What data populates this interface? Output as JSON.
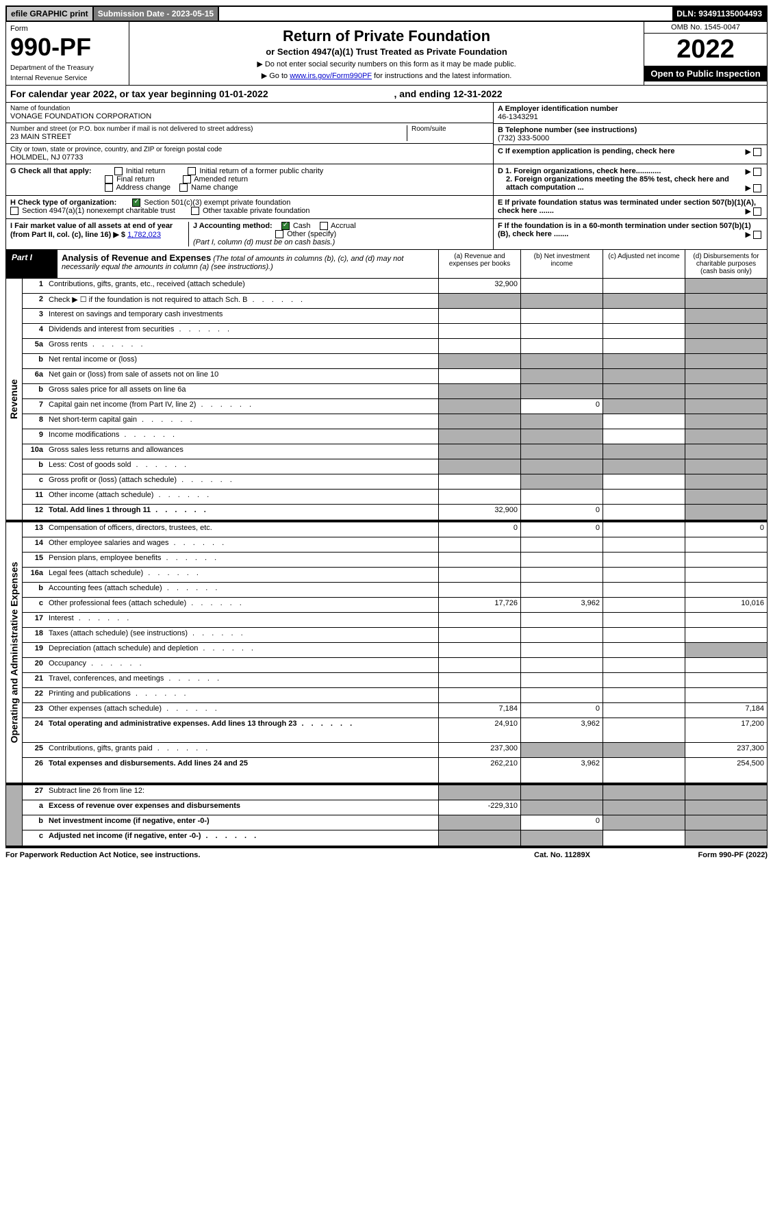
{
  "top": {
    "efile": "efile GRAPHIC print",
    "subdate_label": "Submission Date - 2023-05-15",
    "dln": "DLN: 93491135004493"
  },
  "header": {
    "form_label": "Form",
    "form_number": "990-PF",
    "dept1": "Department of the Treasury",
    "dept2": "Internal Revenue Service",
    "title": "Return of Private Foundation",
    "subtitle": "or Section 4947(a)(1) Trust Treated as Private Foundation",
    "instr1": "▶ Do not enter social security numbers on this form as it may be made public.",
    "instr2_pre": "▶ Go to ",
    "instr2_link": "www.irs.gov/Form990PF",
    "instr2_post": " for instructions and the latest information.",
    "omb": "OMB No. 1545-0047",
    "year": "2022",
    "open": "Open to Public Inspection"
  },
  "calendar": {
    "text_pre": "For calendar year 2022, or tax year beginning 01-01-2022",
    "text_post": ", and ending 12-31-2022"
  },
  "id": {
    "name_label": "Name of foundation",
    "name": "VONAGE FOUNDATION CORPORATION",
    "addr_label": "Number and street (or P.O. box number if mail is not delivered to street address)",
    "addr": "23 MAIN STREET",
    "room_label": "Room/suite",
    "city_label": "City or town, state or province, country, and ZIP or foreign postal code",
    "city": "HOLMDEL, NJ  07733",
    "ein_label": "A Employer identification number",
    "ein": "46-1343291",
    "phone_label": "B Telephone number (see instructions)",
    "phone": "(732) 333-5000",
    "c_label": "C If exemption application is pending, check here"
  },
  "checks": {
    "g_label": "G Check all that apply:",
    "g1": "Initial return",
    "g2": "Final return",
    "g3": "Address change",
    "g4": "Initial return of a former public charity",
    "g5": "Amended return",
    "g6": "Name change",
    "h_label": "H Check type of organization:",
    "h1": "Section 501(c)(3) exempt private foundation",
    "h2": "Section 4947(a)(1) nonexempt charitable trust",
    "h3": "Other taxable private foundation",
    "i_label": "I Fair market value of all assets at end of year (from Part II, col. (c), line 16) ▶ $",
    "i_value": "1,782,023",
    "j_label": "J Accounting method:",
    "j1": "Cash",
    "j2": "Accrual",
    "j3": "Other (specify)",
    "j_note": "(Part I, column (d) must be on cash basis.)",
    "d1": "D 1. Foreign organizations, check here............",
    "d2": "2. Foreign organizations meeting the 85% test, check here and attach computation ...",
    "e_label": "E If private foundation status was terminated under section 507(b)(1)(A), check here .......",
    "f_label": "F If the foundation is in a 60-month termination under section 507(b)(1)(B), check here ......."
  },
  "part1": {
    "label": "Part I",
    "title": "Analysis of Revenue and Expenses",
    "title_note": " (The total of amounts in columns (b), (c), and (d) may not necessarily equal the amounts in column (a) (see instructions).)",
    "col_a": "(a) Revenue and expenses per books",
    "col_b": "(b) Net investment income",
    "col_c": "(c) Adjusted net income",
    "col_d": "(d) Disbursements for charitable purposes (cash basis only)"
  },
  "side_labels": {
    "revenue": "Revenue",
    "expenses": "Operating and Administrative Expenses"
  },
  "rows": [
    {
      "n": "1",
      "desc": "Contributions, gifts, grants, etc., received (attach schedule)",
      "a": "32,900",
      "b": "",
      "c": "",
      "d": "",
      "shade_d": true
    },
    {
      "n": "2",
      "desc": "Check ▶ ☐ if the foundation is not required to attach Sch. B",
      "a": "",
      "b": "",
      "c": "",
      "d": "",
      "shade_all": true,
      "dots": true
    },
    {
      "n": "3",
      "desc": "Interest on savings and temporary cash investments",
      "a": "",
      "b": "",
      "c": "",
      "d": "",
      "shade_d": true
    },
    {
      "n": "4",
      "desc": "Dividends and interest from securities",
      "a": "",
      "b": "",
      "c": "",
      "d": "",
      "shade_d": true,
      "dots": true
    },
    {
      "n": "5a",
      "desc": "Gross rents",
      "a": "",
      "b": "",
      "c": "",
      "d": "",
      "shade_d": true,
      "dots": true
    },
    {
      "n": "b",
      "desc": "Net rental income or (loss)",
      "a": "",
      "b": "",
      "c": "",
      "d": "",
      "shade_all": true,
      "inset": true
    },
    {
      "n": "6a",
      "desc": "Net gain or (loss) from sale of assets not on line 10",
      "a": "",
      "b": "",
      "c": "",
      "d": "",
      "shade_bcd": true
    },
    {
      "n": "b",
      "desc": "Gross sales price for all assets on line 6a",
      "a": "",
      "b": "",
      "c": "",
      "d": "",
      "shade_all": true,
      "inset": true
    },
    {
      "n": "7",
      "desc": "Capital gain net income (from Part IV, line 2)",
      "a": "",
      "b": "0",
      "c": "",
      "d": "",
      "shade_a": true,
      "shade_cd": true,
      "dots": true
    },
    {
      "n": "8",
      "desc": "Net short-term capital gain",
      "a": "",
      "b": "",
      "c": "",
      "d": "",
      "shade_ab": true,
      "shade_d": true,
      "dots": true
    },
    {
      "n": "9",
      "desc": "Income modifications",
      "a": "",
      "b": "",
      "c": "",
      "d": "",
      "shade_ab": true,
      "shade_d": true,
      "dots": true
    },
    {
      "n": "10a",
      "desc": "Gross sales less returns and allowances",
      "a": "",
      "b": "",
      "c": "",
      "d": "",
      "shade_all": true,
      "inset": true
    },
    {
      "n": "b",
      "desc": "Less: Cost of goods sold",
      "a": "",
      "b": "",
      "c": "",
      "d": "",
      "shade_all": true,
      "inset": true,
      "dots": true
    },
    {
      "n": "c",
      "desc": "Gross profit or (loss) (attach schedule)",
      "a": "",
      "b": "",
      "c": "",
      "d": "",
      "shade_b": true,
      "shade_d": true,
      "dots": true
    },
    {
      "n": "11",
      "desc": "Other income (attach schedule)",
      "a": "",
      "b": "",
      "c": "",
      "d": "",
      "shade_d": true,
      "dots": true
    },
    {
      "n": "12",
      "desc": "Total. Add lines 1 through 11",
      "a": "32,900",
      "b": "0",
      "c": "",
      "d": "",
      "shade_d": true,
      "bold": true,
      "dots": true
    }
  ],
  "exp_rows": [
    {
      "n": "13",
      "desc": "Compensation of officers, directors, trustees, etc.",
      "a": "0",
      "b": "0",
      "c": "",
      "d": "0"
    },
    {
      "n": "14",
      "desc": "Other employee salaries and wages",
      "a": "",
      "b": "",
      "c": "",
      "d": "",
      "dots": true
    },
    {
      "n": "15",
      "desc": "Pension plans, employee benefits",
      "a": "",
      "b": "",
      "c": "",
      "d": "",
      "dots": true
    },
    {
      "n": "16a",
      "desc": "Legal fees (attach schedule)",
      "a": "",
      "b": "",
      "c": "",
      "d": "",
      "dots": true
    },
    {
      "n": "b",
      "desc": "Accounting fees (attach schedule)",
      "a": "",
      "b": "",
      "c": "",
      "d": "",
      "dots": true
    },
    {
      "n": "c",
      "desc": "Other professional fees (attach schedule)",
      "a": "17,726",
      "b": "3,962",
      "c": "",
      "d": "10,016",
      "dots": true
    },
    {
      "n": "17",
      "desc": "Interest",
      "a": "",
      "b": "",
      "c": "",
      "d": "",
      "dots": true
    },
    {
      "n": "18",
      "desc": "Taxes (attach schedule) (see instructions)",
      "a": "",
      "b": "",
      "c": "",
      "d": "",
      "dots": true
    },
    {
      "n": "19",
      "desc": "Depreciation (attach schedule) and depletion",
      "a": "",
      "b": "",
      "c": "",
      "d": "",
      "shade_d": true,
      "dots": true
    },
    {
      "n": "20",
      "desc": "Occupancy",
      "a": "",
      "b": "",
      "c": "",
      "d": "",
      "dots": true
    },
    {
      "n": "21",
      "desc": "Travel, conferences, and meetings",
      "a": "",
      "b": "",
      "c": "",
      "d": "",
      "dots": true
    },
    {
      "n": "22",
      "desc": "Printing and publications",
      "a": "",
      "b": "",
      "c": "",
      "d": "",
      "dots": true
    },
    {
      "n": "23",
      "desc": "Other expenses (attach schedule)",
      "a": "7,184",
      "b": "0",
      "c": "",
      "d": "7,184",
      "dots": true
    },
    {
      "n": "24",
      "desc": "Total operating and administrative expenses. Add lines 13 through 23",
      "a": "24,910",
      "b": "3,962",
      "c": "",
      "d": "17,200",
      "bold": true,
      "dots": true,
      "tall": true
    },
    {
      "n": "25",
      "desc": "Contributions, gifts, grants paid",
      "a": "237,300",
      "b": "",
      "c": "",
      "d": "237,300",
      "shade_bc": true,
      "dots": true
    },
    {
      "n": "26",
      "desc": "Total expenses and disbursements. Add lines 24 and 25",
      "a": "262,210",
      "b": "3,962",
      "c": "",
      "d": "254,500",
      "bold": true,
      "tall": true
    }
  ],
  "final_rows": [
    {
      "n": "27",
      "desc": "Subtract line 26 from line 12:",
      "a": "",
      "b": "",
      "c": "",
      "d": "",
      "shade_all": true
    },
    {
      "n": "a",
      "desc": "Excess of revenue over expenses and disbursements",
      "a": "-229,310",
      "b": "",
      "c": "",
      "d": "",
      "shade_bcd": true,
      "bold": true
    },
    {
      "n": "b",
      "desc": "Net investment income (if negative, enter -0-)",
      "a": "",
      "b": "0",
      "c": "",
      "d": "",
      "shade_a": true,
      "shade_cd": true,
      "bold": true
    },
    {
      "n": "c",
      "desc": "Adjusted net income (if negative, enter -0-)",
      "a": "",
      "b": "",
      "c": "",
      "d": "",
      "shade_ab": true,
      "shade_d": true,
      "bold": true,
      "dots": true
    }
  ],
  "footer": {
    "left": "For Paperwork Reduction Act Notice, see instructions.",
    "center": "Cat. No. 11289X",
    "right": "Form 990-PF (2022)"
  }
}
